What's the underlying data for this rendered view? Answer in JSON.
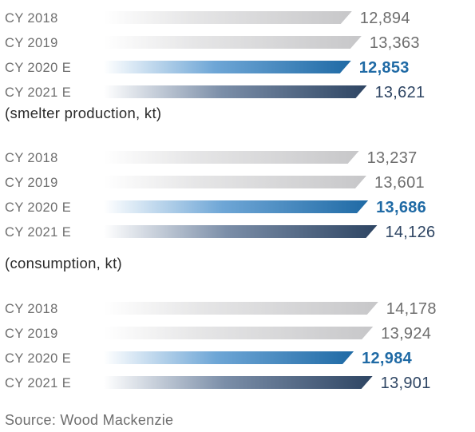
{
  "colors": {
    "actual_gray": "#c7c7c9",
    "estimate_2020_blue": "#1f6aa5",
    "estimate_2021_navy": "#2e4563",
    "label_gray": "#6e6e6e"
  },
  "chart_data": [
    {
      "type": "bar",
      "orientation": "horizontal",
      "categories": [
        "CY 2018",
        "CY 2019",
        "CY 2020 E",
        "CY 2021 E"
      ],
      "values": [
        12894,
        13363,
        12853,
        13621
      ],
      "value_labels": [
        "12,894",
        "13,363",
        "12,853",
        "13,621"
      ],
      "note": "(smelter production, kt)",
      "highlight_index": 2
    },
    {
      "type": "bar",
      "orientation": "horizontal",
      "categories": [
        "CY 2018",
        "CY 2019",
        "CY 2020 E",
        "CY 2021 E"
      ],
      "values": [
        13237,
        13601,
        13686,
        14126
      ],
      "value_labels": [
        "13,237",
        "13,601",
        "13,686",
        "14,126"
      ],
      "note": "(consumption, kt)",
      "highlight_index": 2
    },
    {
      "type": "bar",
      "orientation": "horizontal",
      "categories": [
        "CY 2018",
        "CY 2019",
        "CY 2020 E",
        "CY 2021 E"
      ],
      "values": [
        14178,
        13924,
        12984,
        13901
      ],
      "value_labels": [
        "14,178",
        "13,924",
        "12,984",
        "13,901"
      ],
      "note": "",
      "highlight_index": 2
    }
  ],
  "source": "Source: Wood Mackenzie"
}
